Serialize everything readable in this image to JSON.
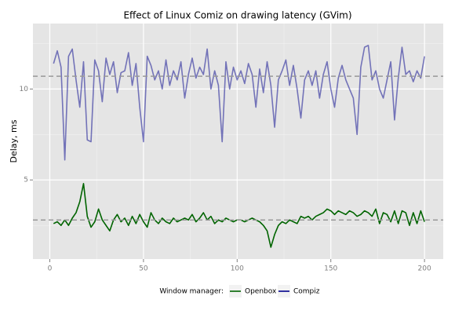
{
  "chart_data": {
    "type": "line",
    "title": "Effect of Linux Comiz on drawing latency (GVim)",
    "y_label": "Delay, ms",
    "legend_title": "Window manager:",
    "legend": "bottom",
    "x": [
      2,
      4,
      6,
      8,
      10,
      12,
      14,
      16,
      18,
      20,
      22,
      24,
      26,
      28,
      30,
      32,
      34,
      36,
      38,
      40,
      42,
      44,
      46,
      48,
      50,
      52,
      54,
      56,
      58,
      60,
      62,
      64,
      66,
      68,
      70,
      72,
      74,
      76,
      78,
      80,
      82,
      84,
      86,
      88,
      90,
      92,
      94,
      96,
      98,
      100,
      102,
      104,
      106,
      108,
      110,
      112,
      114,
      116,
      118,
      120,
      122,
      124,
      126,
      128,
      130,
      132,
      134,
      136,
      138,
      140,
      142,
      144,
      146,
      148,
      150,
      152,
      154,
      156,
      158,
      160,
      162,
      164,
      166,
      168,
      170,
      172,
      174,
      176,
      178,
      180,
      182,
      184,
      186,
      188,
      190,
      192,
      194,
      196,
      198,
      200
    ],
    "series": [
      {
        "name": "Openbox",
        "color": "#006400",
        "alpha": 1,
        "values": [
          2.6,
          2.7,
          2.5,
          2.8,
          2.5,
          2.9,
          3.2,
          3.8,
          4.8,
          3.0,
          2.4,
          2.7,
          3.4,
          2.8,
          2.5,
          2.2,
          2.8,
          3.1,
          2.7,
          2.9,
          2.5,
          3.0,
          2.6,
          3.1,
          2.7,
          2.4,
          3.2,
          2.8,
          2.6,
          2.9,
          2.7,
          2.6,
          2.9,
          2.7,
          2.8,
          2.9,
          2.8,
          3.1,
          2.7,
          2.9,
          3.2,
          2.8,
          3.0,
          2.6,
          2.8,
          2.7,
          2.9,
          2.8,
          2.7,
          2.8,
          2.8,
          2.7,
          2.8,
          2.9,
          2.8,
          2.7,
          2.5,
          2.2,
          1.3,
          2.0,
          2.5,
          2.7,
          2.6,
          2.8,
          2.7,
          2.6,
          3.0,
          2.9,
          3.0,
          2.8,
          3.0,
          3.1,
          3.2,
          3.4,
          3.3,
          3.1,
          3.3,
          3.2,
          3.1,
          3.3,
          3.2,
          3.0,
          3.1,
          3.3,
          3.2,
          3.0,
          3.4,
          2.6,
          3.2,
          3.1,
          2.7,
          3.3,
          2.6,
          3.3,
          3.2,
          2.5,
          3.2,
          2.6,
          3.3,
          2.7
        ]
      },
      {
        "name": "Compiz",
        "color": "#00008b",
        "alpha": 0.5,
        "values": [
          11.4,
          12.1,
          11.2,
          6.1,
          11.8,
          12.2,
          10.5,
          9.0,
          11.5,
          7.2,
          7.1,
          11.6,
          11.0,
          9.3,
          11.7,
          10.8,
          11.5,
          9.8,
          10.9,
          11.0,
          12.0,
          10.2,
          11.4,
          9.0,
          7.1,
          11.8,
          11.3,
          10.5,
          11.0,
          10.0,
          11.6,
          10.2,
          11.0,
          10.5,
          11.5,
          9.5,
          10.8,
          11.7,
          10.6,
          11.2,
          10.8,
          12.2,
          10.0,
          11.0,
          10.2,
          7.1,
          11.5,
          10.0,
          11.2,
          10.5,
          11.0,
          10.3,
          11.4,
          10.8,
          9.0,
          11.1,
          9.8,
          11.5,
          10.2,
          7.9,
          10.5,
          11.0,
          11.6,
          10.2,
          11.3,
          10.0,
          8.4,
          10.5,
          11.0,
          10.2,
          11.0,
          9.5,
          10.8,
          11.5,
          10.0,
          9.0,
          10.6,
          11.3,
          10.5,
          10.0,
          9.5,
          7.5,
          11.2,
          12.3,
          12.4,
          10.5,
          11.0,
          10.0,
          9.5,
          10.5,
          11.5,
          8.3,
          10.6,
          12.3,
          10.8,
          11.0,
          10.4,
          11.0,
          10.6,
          11.8
        ]
      }
    ],
    "hlines": [
      10.7,
      2.8
    ],
    "hline_color": "#999999",
    "xlim": [
      -9,
      210
    ],
    "xticks": [
      0,
      50,
      100,
      150,
      200
    ],
    "minor_xticks": [
      25,
      75,
      125,
      175
    ],
    "ylim": [
      0.65,
      13.6
    ],
    "yticks": [
      5,
      10
    ],
    "minor_yticks": [
      2.5,
      7.5,
      12.5
    ],
    "grid": true
  }
}
